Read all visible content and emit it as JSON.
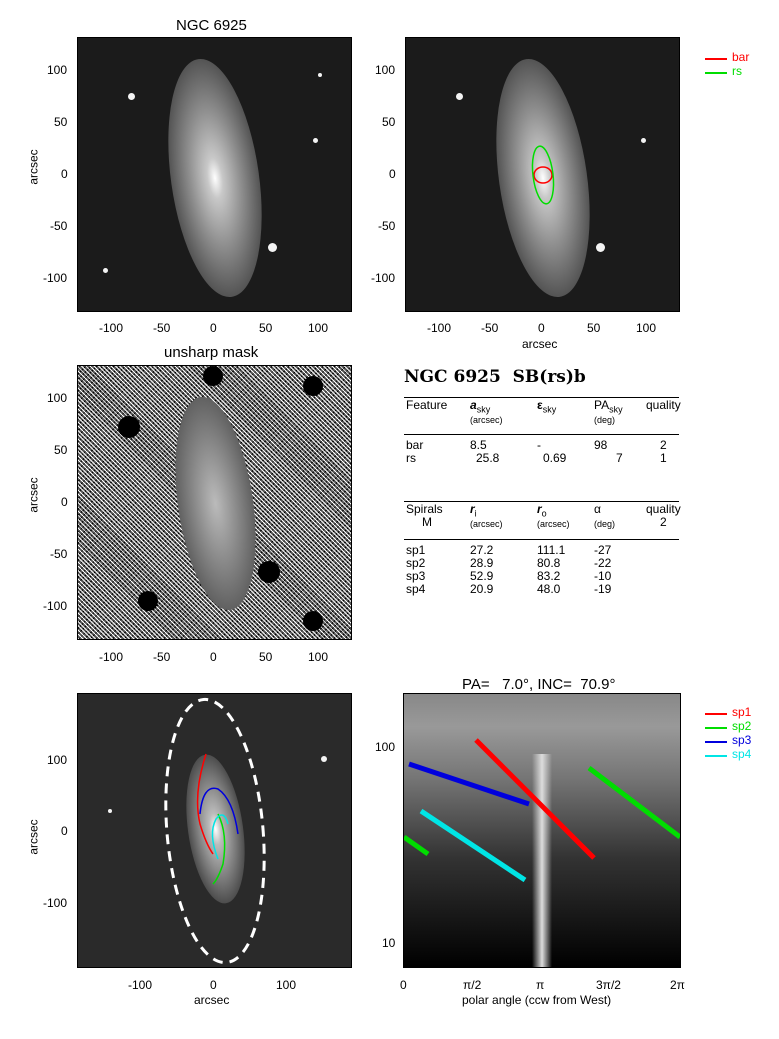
{
  "panels": {
    "top_left": {
      "title": "NGC 6925",
      "ylabel": "arcsec",
      "xticks": [
        "-100",
        "-50",
        "0",
        "50",
        "100"
      ],
      "yticks": [
        "100",
        "50",
        "0",
        "-50",
        "-100"
      ]
    },
    "top_right": {
      "xlabel": "arcsec",
      "xticks": [
        "-100",
        "-50",
        "0",
        "50",
        "100"
      ],
      "yticks": [
        "100",
        "50",
        "0",
        "-50",
        "-100"
      ],
      "legend": [
        {
          "label": "bar",
          "color": "#ff0000"
        },
        {
          "label": "rs",
          "color": "#00dd00"
        }
      ]
    },
    "mid_left": {
      "title": "unsharp mask",
      "ylabel": "arcsec",
      "xticks": [
        "-100",
        "-50",
        "0",
        "50",
        "100"
      ],
      "yticks": [
        "100",
        "50",
        "0",
        "-50",
        "-100"
      ]
    },
    "bottom_left": {
      "ylabel": "arcsec",
      "xlabel": "arcsec",
      "xticks": [
        "-100",
        "0",
        "100"
      ],
      "yticks": [
        "100",
        "0",
        "-100"
      ]
    },
    "bottom_right": {
      "title": "PA=   7.0°, INC=  70.9°",
      "xlabel": "polar angle (ccw from West)",
      "xticks": [
        "0",
        "π/2",
        "π",
        "3π/2",
        "2π"
      ],
      "yticks": [
        "100",
        "10"
      ],
      "legend": [
        {
          "label": "sp1",
          "color": "#ff0000"
        },
        {
          "label": "sp2",
          "color": "#00dd00"
        },
        {
          "label": "sp3",
          "color": "#0000dd"
        },
        {
          "label": "sp4",
          "color": "#00e5e5"
        }
      ]
    }
  },
  "table": {
    "heading": "NGC 6925  SB(rs)b",
    "features_header": {
      "c1": "Feature",
      "c2": "a",
      "c2sub": "sky",
      "c2unit": "(arcsec)",
      "c3": "ε",
      "c3sub": "sky",
      "c4": "PA",
      "c4sub": "sky",
      "c4unit": "(deg)",
      "c5": "quality"
    },
    "features": [
      {
        "name": "bar",
        "a": "8.5",
        "e": "-",
        "pa": "98",
        "q": "2"
      },
      {
        "name": "rs",
        "a": "25.8",
        "e": "0.69",
        "pa": "7",
        "q": "1"
      }
    ],
    "spirals_header": {
      "c1": "Spirals",
      "c1b": "M",
      "c2": "r",
      "c2sub": "i",
      "c2unit": "(arcsec)",
      "c3": "r",
      "c3sub": "o",
      "c3unit": "(arcsec)",
      "c4": "α",
      "c4unit": "(deg)",
      "c5": "quality",
      "c5b": "2"
    },
    "spirals": [
      {
        "name": "sp1",
        "ri": "27.2",
        "ro": "111.1",
        "alpha": "-27"
      },
      {
        "name": "sp2",
        "ri": "28.9",
        "ro": "80.8",
        "alpha": "-22"
      },
      {
        "name": "sp3",
        "ri": "52.9",
        "ro": "83.2",
        "alpha": "-10"
      },
      {
        "name": "sp4",
        "ri": "20.9",
        "ro": "48.0",
        "alpha": "-19"
      }
    ]
  }
}
